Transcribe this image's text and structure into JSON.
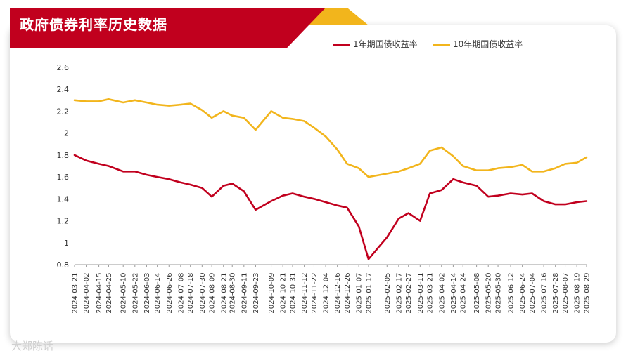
{
  "header": {
    "title": "政府债券利率历史数据"
  },
  "watermark": {
    "text": "大郑陈话"
  },
  "colors": {
    "banner": "#c1001e",
    "accent": "#f2b51c",
    "series_1y": "#c1001e",
    "series_10y": "#f2b51c"
  },
  "chart_data": {
    "type": "line",
    "title": "政府债券利率历史数据",
    "xlabel": "",
    "ylabel": "",
    "ylim": [
      0.8,
      2.6
    ],
    "yticks": [
      "0.8",
      "1",
      "1.2",
      "1.4",
      "1.6",
      "1.8",
      "2",
      "2.2",
      "2.4",
      "2.6"
    ],
    "xticks": [
      "2024-03-21",
      "2024-04-02",
      "2024-04-15",
      "2024-04-25",
      "2024-05-10",
      "2024-05-22",
      "2024-06-03",
      "2024-06-14",
      "2024-06-26",
      "2024-07-08",
      "2024-07-18",
      "2024-07-30",
      "2024-08-09",
      "2024-08-21",
      "2024-08-30",
      "2024-09-11",
      "2024-09-23",
      "2024-10-09",
      "2024-10-21",
      "2024-10-31",
      "2024-11-12",
      "2024-11-22",
      "2024-12-04",
      "2024-12-16",
      "2024-12-26",
      "2025-01-07",
      "2025-01-17",
      "2025-02-05",
      "2025-02-17",
      "2025-02-27",
      "2025-03-11",
      "2025-03-21",
      "2025-04-02",
      "2025-04-14",
      "2025-04-24",
      "2025-05-08",
      "2025-05-20",
      "2025-05-30",
      "2025-06-12",
      "2025-06-24",
      "2025-07-04",
      "2025-07-16",
      "2025-07-28",
      "2025-08-07",
      "2025-08-19",
      "2025-08-29"
    ],
    "grid": false,
    "legend_position": "top-right",
    "series": [
      {
        "name": "1年期国债收益率",
        "x": [
          "2024-03-21",
          "2024-04-02",
          "2024-04-15",
          "2024-04-25",
          "2024-05-10",
          "2024-05-22",
          "2024-06-03",
          "2024-06-14",
          "2024-06-26",
          "2024-07-08",
          "2024-07-18",
          "2024-07-30",
          "2024-08-09",
          "2024-08-21",
          "2024-08-30",
          "2024-09-11",
          "2024-09-23",
          "2024-10-09",
          "2024-10-21",
          "2024-10-31",
          "2024-11-12",
          "2024-11-22",
          "2024-12-04",
          "2024-12-16",
          "2024-12-26",
          "2025-01-07",
          "2025-01-17",
          "2025-02-05",
          "2025-02-17",
          "2025-02-27",
          "2025-03-11",
          "2025-03-21",
          "2025-04-02",
          "2025-04-14",
          "2025-04-24",
          "2025-05-08",
          "2025-05-20",
          "2025-05-30",
          "2025-06-12",
          "2025-06-24",
          "2025-07-04",
          "2025-07-16",
          "2025-07-28",
          "2025-08-07",
          "2025-08-19",
          "2025-08-29"
        ],
        "values": [
          1.8,
          1.75,
          1.72,
          1.7,
          1.65,
          1.65,
          1.62,
          1.6,
          1.58,
          1.55,
          1.53,
          1.5,
          1.42,
          1.52,
          1.54,
          1.47,
          1.3,
          1.38,
          1.43,
          1.45,
          1.42,
          1.4,
          1.37,
          1.34,
          1.32,
          1.15,
          0.85,
          1.05,
          1.22,
          1.27,
          1.2,
          1.45,
          1.48,
          1.58,
          1.55,
          1.52,
          1.42,
          1.43,
          1.45,
          1.44,
          1.45,
          1.38,
          1.35,
          1.35,
          1.37,
          1.38
        ]
      },
      {
        "name": "10年期国债收益率",
        "x": [
          "2024-03-21",
          "2024-04-02",
          "2024-04-15",
          "2024-04-25",
          "2024-05-10",
          "2024-05-22",
          "2024-06-03",
          "2024-06-14",
          "2024-06-26",
          "2024-07-08",
          "2024-07-18",
          "2024-07-30",
          "2024-08-09",
          "2024-08-21",
          "2024-08-30",
          "2024-09-11",
          "2024-09-23",
          "2024-10-09",
          "2024-10-21",
          "2024-10-31",
          "2024-11-12",
          "2024-11-22",
          "2024-12-04",
          "2024-12-16",
          "2024-12-26",
          "2025-01-07",
          "2025-01-17",
          "2025-02-05",
          "2025-02-17",
          "2025-02-27",
          "2025-03-11",
          "2025-03-21",
          "2025-04-02",
          "2025-04-14",
          "2025-04-24",
          "2025-05-08",
          "2025-05-20",
          "2025-05-30",
          "2025-06-12",
          "2025-06-24",
          "2025-07-04",
          "2025-07-16",
          "2025-07-28",
          "2025-08-07",
          "2025-08-19",
          "2025-08-29"
        ],
        "values": [
          2.3,
          2.29,
          2.29,
          2.31,
          2.28,
          2.3,
          2.28,
          2.26,
          2.25,
          2.26,
          2.27,
          2.21,
          2.14,
          2.2,
          2.16,
          2.14,
          2.03,
          2.2,
          2.14,
          2.13,
          2.11,
          2.05,
          1.97,
          1.85,
          1.72,
          1.68,
          1.6,
          1.63,
          1.65,
          1.68,
          1.72,
          1.84,
          1.87,
          1.79,
          1.7,
          1.66,
          1.66,
          1.68,
          1.69,
          1.71,
          1.65,
          1.65,
          1.68,
          1.72,
          1.73,
          1.78
        ]
      }
    ]
  }
}
